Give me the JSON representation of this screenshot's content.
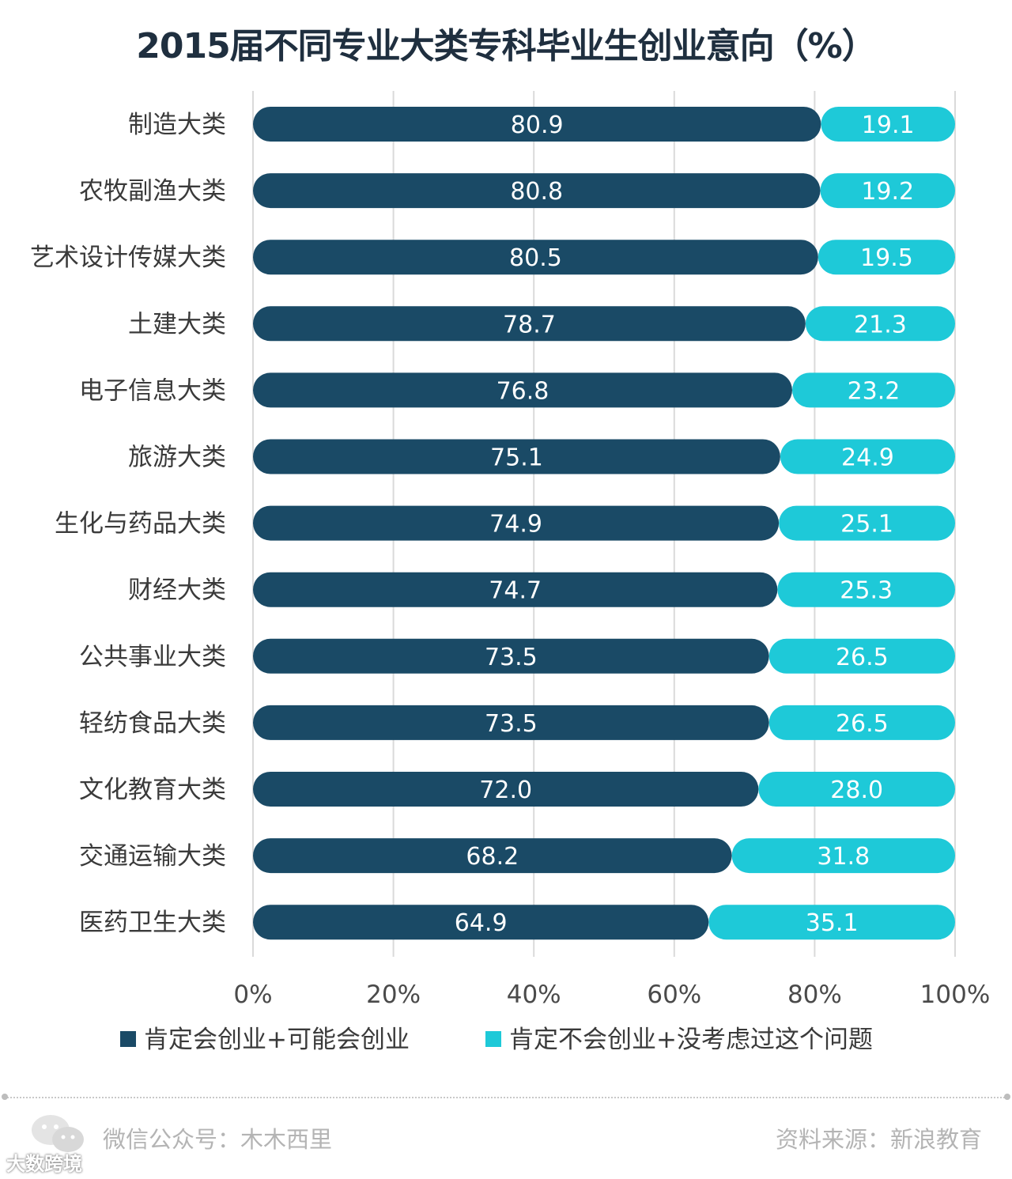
{
  "title": "2015届不同专业大类专科毕业生创业意向（%）",
  "chart_data": {
    "type": "bar",
    "orientation": "horizontal",
    "stacked": true,
    "categories": [
      "制造大类",
      "农牧副渔大类",
      "艺术设计传媒大类",
      "土建大类",
      "电子信息大类",
      "旅游大类",
      "生化与药品大类",
      "财经大类",
      "公共事业大类",
      "轻纺食品大类",
      "文化教育大类",
      "交通运输大类",
      "医药卫生大类"
    ],
    "series": [
      {
        "name": "肯定会创业+可能会创业",
        "color": "#1a4a66",
        "values": [
          80.9,
          80.8,
          80.5,
          78.7,
          76.8,
          75.1,
          74.9,
          74.7,
          73.5,
          73.5,
          72.0,
          68.2,
          64.9
        ],
        "labels": [
          "80.9",
          "80.8",
          "80.5",
          "78.7",
          "76.8",
          "75.1",
          "74.9",
          "74.7",
          "73.5",
          "73.5",
          "72.0",
          "68.2",
          "64.9"
        ]
      },
      {
        "name": "肯定不会创业+没考虑过这个问题",
        "color": "#1ec9d8",
        "values": [
          19.1,
          19.2,
          19.5,
          21.3,
          23.2,
          24.9,
          25.1,
          25.3,
          26.5,
          26.5,
          28.0,
          31.8,
          35.1
        ],
        "labels": [
          "19.1",
          "19.2",
          "19.5",
          "21.3",
          "23.2",
          "24.9",
          "25.1",
          "25.3",
          "26.5",
          "26.5",
          "28.0",
          "31.8",
          "35.1"
        ]
      }
    ],
    "xlim": [
      0,
      100
    ],
    "xticks": [
      "0%",
      "20%",
      "40%",
      "60%",
      "80%",
      "100%"
    ],
    "grid": true,
    "legend": "bottom"
  },
  "footer": {
    "account": "微信公众号：木木西里",
    "source": "资料来源：新浪教育",
    "watermark": "大数跨境",
    "icon": "wechat-icon"
  }
}
